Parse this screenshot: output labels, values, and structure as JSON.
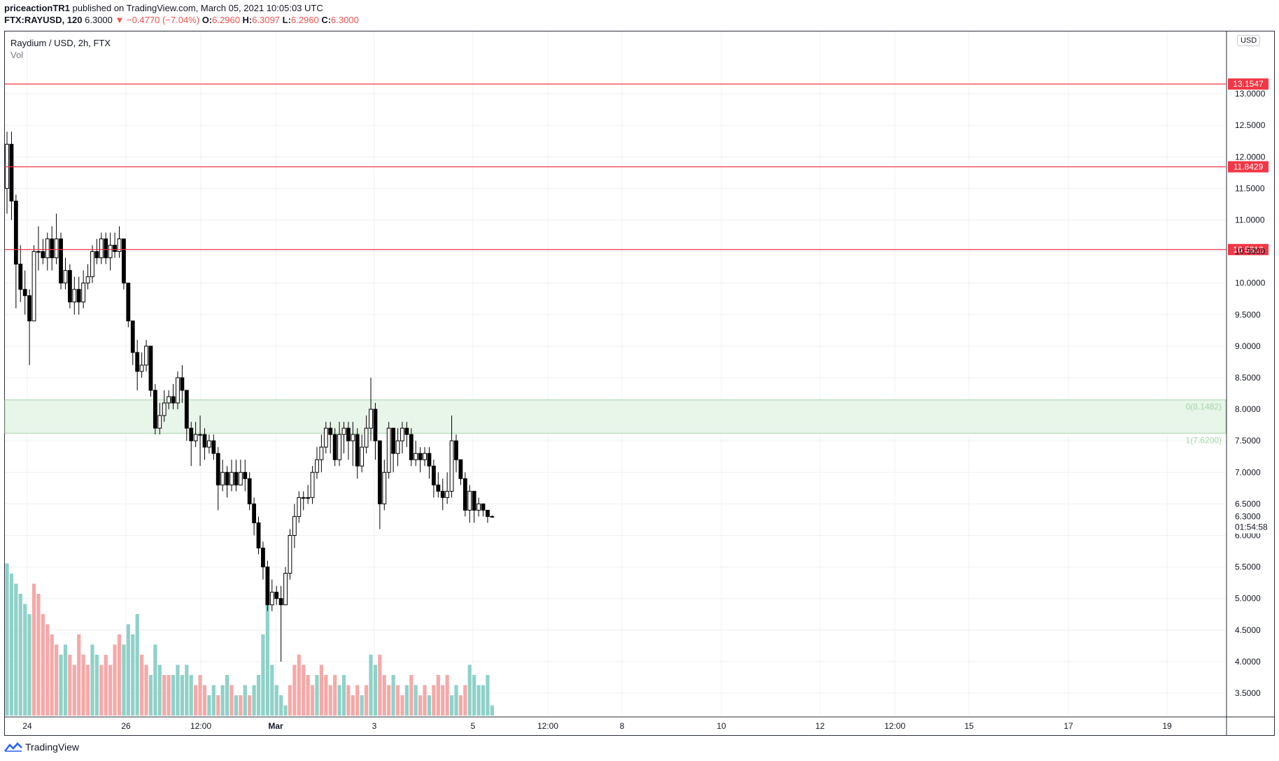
{
  "header": {
    "publisher": "priceactionTR1",
    "published_text": "published on TradingView.com, March 05, 2021 10:05:03 UTC",
    "symbol": "FTX:RAYUSD, 120",
    "last": "6.3000",
    "change": "▼ −0.4770 (−7.04%)",
    "o_label": "O:",
    "o_value": "6.2960",
    "h_label": "H:",
    "h_value": "6.3097",
    "l_label": "L:",
    "l_value": "6.2960",
    "c_label": "C:",
    "c_value": "6.3000"
  },
  "legend": {
    "title": "Raydium / USD, 2h, FTX",
    "vol": "Vol"
  },
  "price_scale": {
    "currency": "USD"
  },
  "footer": {
    "brand": "TradingView"
  },
  "colors": {
    "up_volume": "#8fd1c8",
    "down_volume": "#f4a9a8",
    "level_line": "#f23645",
    "zone_fill": "#e8f5e9",
    "zone_border": "#a5d6a7",
    "grid": "#edf0f4",
    "candle": "#000000"
  },
  "chart_data": {
    "type": "candlestick",
    "ylim": [
      3.1,
      13.8
    ],
    "y_ticks": [
      "13.0000",
      "12.5000",
      "12.0000",
      "11.5000",
      "11.0000",
      "10.5000",
      "10.0000",
      "9.5000",
      "9.0000",
      "8.5000",
      "8.0000",
      "7.5000",
      "7.0000",
      "6.5000",
      "6.0000",
      "5.5000",
      "5.0000",
      "4.5000",
      "4.0000",
      "3.5000"
    ],
    "x_ticks": [
      {
        "label": "24",
        "bold": false
      },
      {
        "label": "26",
        "bold": false
      },
      {
        "label": "12:00",
        "bold": false
      },
      {
        "label": "Mar",
        "bold": true
      },
      {
        "label": "3",
        "bold": false
      },
      {
        "label": "5",
        "bold": false
      },
      {
        "label": "12:00",
        "bold": false
      },
      {
        "label": "8",
        "bold": false
      },
      {
        "label": "10",
        "bold": false
      },
      {
        "label": "12",
        "bold": false
      },
      {
        "label": "12:00",
        "bold": false
      },
      {
        "label": "15",
        "bold": false
      },
      {
        "label": "17",
        "bold": false
      },
      {
        "label": "19",
        "bold": false
      }
    ],
    "horizontal_levels": [
      {
        "value": 13.1547,
        "label": "13.1547"
      },
      {
        "value": 11.8429,
        "label": "11.8429"
      },
      {
        "value": 10.5312,
        "label": "10.5312"
      }
    ],
    "zone": {
      "top": 8.1482,
      "bottom": 7.62,
      "top_label": "0(8.1482)",
      "bottom_label": "1(7.6200)"
    },
    "last_price": {
      "value": 6.3,
      "label": "6.3000",
      "countdown": "01:54:58"
    },
    "candles": [
      [
        11.5,
        12.2,
        12.4,
        11.1
      ],
      [
        12.2,
        11.3,
        12.4,
        11.0
      ],
      [
        11.3,
        10.3,
        11.4,
        9.6
      ],
      [
        10.3,
        9.9,
        10.6,
        9.7
      ],
      [
        9.9,
        9.8,
        10.2,
        9.5
      ],
      [
        9.8,
        9.4,
        9.9,
        8.7
      ],
      [
        9.4,
        10.5,
        10.6,
        9.4
      ],
      [
        10.5,
        10.5,
        10.9,
        10.2
      ],
      [
        10.5,
        10.4,
        10.7,
        10.3
      ],
      [
        10.4,
        10.7,
        10.8,
        10.2
      ],
      [
        10.7,
        10.4,
        10.9,
        10.2
      ],
      [
        10.4,
        10.7,
        11.1,
        10.3
      ],
      [
        10.7,
        10.0,
        10.8,
        9.9
      ],
      [
        10.0,
        10.2,
        10.4,
        9.9
      ],
      [
        10.2,
        9.7,
        10.3,
        9.6
      ],
      [
        9.7,
        9.9,
        10.1,
        9.5
      ],
      [
        9.9,
        9.7,
        10.1,
        9.5
      ],
      [
        9.7,
        10.0,
        10.2,
        9.6
      ],
      [
        10.0,
        10.1,
        10.3,
        9.9
      ],
      [
        10.1,
        10.5,
        10.6,
        10.0
      ],
      [
        10.5,
        10.4,
        10.7,
        10.3
      ],
      [
        10.4,
        10.7,
        10.8,
        10.3
      ],
      [
        10.7,
        10.4,
        10.8,
        10.3
      ],
      [
        10.4,
        10.6,
        10.8,
        10.2
      ],
      [
        10.6,
        10.5,
        10.8,
        10.4
      ],
      [
        10.5,
        10.7,
        10.9,
        10.4
      ],
      [
        10.7,
        10.0,
        10.7,
        9.9
      ],
      [
        10.0,
        9.4,
        10.0,
        9.3
      ],
      [
        9.4,
        8.9,
        9.4,
        8.7
      ],
      [
        8.9,
        8.6,
        9.1,
        8.3
      ],
      [
        8.6,
        8.7,
        8.9,
        8.5
      ],
      [
        8.7,
        9.0,
        9.1,
        8.6
      ],
      [
        9.0,
        8.3,
        9.0,
        8.2
      ],
      [
        8.3,
        7.7,
        8.4,
        7.6
      ],
      [
        7.7,
        7.9,
        8.1,
        7.6
      ],
      [
        7.9,
        8.1,
        8.3,
        7.8
      ],
      [
        8.1,
        8.2,
        8.3,
        8.0
      ],
      [
        8.2,
        8.1,
        8.4,
        8.0
      ],
      [
        8.1,
        8.5,
        8.6,
        8.0
      ],
      [
        8.5,
        8.3,
        8.7,
        8.1
      ],
      [
        8.3,
        7.7,
        8.3,
        7.5
      ],
      [
        7.7,
        7.5,
        7.8,
        7.1
      ],
      [
        7.5,
        7.6,
        7.8,
        7.4
      ],
      [
        7.6,
        7.6,
        7.9,
        7.1
      ],
      [
        7.6,
        7.4,
        7.7,
        7.2
      ],
      [
        7.4,
        7.5,
        7.6,
        7.3
      ],
      [
        7.5,
        7.3,
        7.6,
        7.2
      ],
      [
        7.3,
        6.8,
        7.4,
        6.4
      ],
      [
        6.8,
        7.0,
        7.2,
        6.7
      ],
      [
        7.0,
        6.8,
        7.1,
        6.6
      ],
      [
        6.8,
        7.0,
        7.2,
        6.7
      ],
      [
        7.0,
        6.8,
        7.2,
        6.7
      ],
      [
        6.8,
        7.0,
        7.2,
        6.8
      ],
      [
        7.0,
        6.9,
        7.2,
        6.7
      ],
      [
        6.9,
        6.5,
        7.0,
        6.4
      ],
      [
        6.5,
        6.2,
        6.6,
        6.0
      ],
      [
        6.2,
        5.8,
        6.3,
        5.7
      ],
      [
        5.8,
        5.5,
        5.9,
        5.3
      ],
      [
        5.5,
        4.9,
        5.6,
        4.8
      ],
      [
        4.9,
        5.1,
        5.3,
        4.8
      ],
      [
        5.1,
        5.0,
        5.2,
        4.9
      ],
      [
        5.0,
        4.9,
        5.2,
        4.0
      ],
      [
        4.9,
        5.4,
        5.5,
        4.9
      ],
      [
        5.4,
        6.0,
        6.1,
        5.3
      ],
      [
        6.0,
        6.3,
        6.5,
        5.8
      ],
      [
        6.3,
        6.6,
        6.7,
        6.2
      ],
      [
        6.6,
        6.6,
        6.7,
        6.4
      ],
      [
        6.6,
        6.6,
        6.8,
        6.5
      ],
      [
        6.6,
        7.0,
        7.1,
        6.5
      ],
      [
        7.0,
        7.2,
        7.4,
        6.9
      ],
      [
        7.2,
        7.4,
        7.6,
        7.0
      ],
      [
        7.4,
        7.7,
        7.8,
        7.3
      ],
      [
        7.7,
        7.6,
        7.8,
        7.3
      ],
      [
        7.6,
        7.2,
        7.7,
        7.1
      ],
      [
        7.2,
        7.6,
        7.8,
        7.1
      ],
      [
        7.6,
        7.7,
        7.8,
        7.3
      ],
      [
        7.7,
        7.5,
        7.8,
        7.2
      ],
      [
        7.5,
        7.6,
        7.8,
        7.1
      ],
      [
        7.6,
        7.1,
        7.7,
        6.9
      ],
      [
        7.1,
        7.4,
        7.6,
        7.0
      ],
      [
        7.4,
        7.7,
        7.9,
        7.3
      ],
      [
        7.7,
        8.0,
        8.5,
        7.5
      ],
      [
        8.0,
        7.5,
        8.1,
        7.2
      ],
      [
        7.5,
        6.5,
        7.5,
        6.1
      ],
      [
        6.5,
        7.0,
        7.2,
        6.4
      ],
      [
        7.0,
        7.7,
        7.8,
        6.9
      ],
      [
        7.7,
        7.3,
        7.7,
        7.0
      ],
      [
        7.3,
        7.5,
        7.7,
        7.1
      ],
      [
        7.5,
        7.7,
        7.8,
        7.3
      ],
      [
        7.7,
        7.6,
        7.8,
        7.4
      ],
      [
        7.6,
        7.2,
        7.7,
        7.1
      ],
      [
        7.2,
        7.3,
        7.5,
        7.1
      ],
      [
        7.3,
        7.2,
        7.4,
        7.0
      ],
      [
        7.2,
        7.3,
        7.4,
        7.1
      ],
      [
        7.3,
        7.1,
        7.4,
        6.9
      ],
      [
        7.1,
        6.8,
        7.2,
        6.6
      ],
      [
        6.8,
        6.7,
        7.0,
        6.6
      ],
      [
        6.7,
        6.6,
        6.9,
        6.4
      ],
      [
        6.6,
        6.7,
        7.0,
        6.5
      ],
      [
        6.7,
        7.5,
        7.9,
        6.6
      ],
      [
        7.5,
        7.2,
        7.6,
        7.0
      ],
      [
        7.2,
        6.9,
        7.2,
        6.8
      ],
      [
        6.9,
        6.4,
        7.0,
        6.3
      ],
      [
        6.4,
        6.7,
        6.8,
        6.2
      ],
      [
        6.7,
        6.4,
        6.7,
        6.2
      ],
      [
        6.4,
        6.5,
        6.6,
        6.3
      ],
      [
        6.5,
        6.4,
        6.5,
        6.3
      ],
      [
        6.4,
        6.3,
        6.4,
        6.2
      ],
      [
        6.3,
        6.3,
        6.32,
        6.29
      ]
    ],
    "volume": [
      [
        15,
        1
      ],
      [
        14,
        1
      ],
      [
        13,
        1
      ],
      [
        12,
        1
      ],
      [
        11,
        1
      ],
      [
        10,
        1
      ],
      [
        13,
        0
      ],
      [
        12,
        0
      ],
      [
        10,
        0
      ],
      [
        9,
        0
      ],
      [
        8,
        0
      ],
      [
        7,
        0
      ],
      [
        6,
        1
      ],
      [
        7,
        1
      ],
      [
        6,
        0
      ],
      [
        5,
        0
      ],
      [
        8,
        0
      ],
      [
        6,
        0
      ],
      [
        5,
        0
      ],
      [
        7,
        1
      ],
      [
        6,
        1
      ],
      [
        5,
        0
      ],
      [
        6,
        0
      ],
      [
        5,
        0
      ],
      [
        7,
        0
      ],
      [
        8,
        0
      ],
      [
        7,
        1
      ],
      [
        9,
        1
      ],
      [
        8,
        1
      ],
      [
        10,
        1
      ],
      [
        6,
        0
      ],
      [
        5,
        0
      ],
      [
        4,
        1
      ],
      [
        7,
        1
      ],
      [
        5,
        1
      ],
      [
        4,
        0
      ],
      [
        4,
        0
      ],
      [
        4,
        1
      ],
      [
        5,
        1
      ],
      [
        4,
        1
      ],
      [
        5,
        1
      ],
      [
        4,
        1
      ],
      [
        3,
        0
      ],
      [
        4,
        0
      ],
      [
        3,
        0
      ],
      [
        2,
        1
      ],
      [
        3,
        1
      ],
      [
        2,
        0
      ],
      [
        3,
        1
      ],
      [
        4,
        1
      ],
      [
        3,
        0
      ],
      [
        2,
        1
      ],
      [
        2,
        0
      ],
      [
        3,
        1
      ],
      [
        2,
        0
      ],
      [
        3,
        1
      ],
      [
        4,
        1
      ],
      [
        8,
        1
      ],
      [
        11,
        1
      ],
      [
        5,
        1
      ],
      [
        3,
        1
      ],
      [
        2,
        1
      ],
      [
        1,
        1
      ],
      [
        3,
        0
      ],
      [
        5,
        0
      ],
      [
        6,
        0
      ],
      [
        5,
        0
      ],
      [
        4,
        0
      ],
      [
        3,
        0
      ],
      [
        4,
        1
      ],
      [
        5,
        0
      ],
      [
        4,
        0
      ],
      [
        3,
        0
      ],
      [
        4,
        0
      ],
      [
        3,
        1
      ],
      [
        4,
        1
      ],
      [
        3,
        0
      ],
      [
        2,
        0
      ],
      [
        3,
        0
      ],
      [
        2,
        1
      ],
      [
        3,
        0
      ],
      [
        6,
        1
      ],
      [
        5,
        1
      ],
      [
        6,
        0
      ],
      [
        4,
        0
      ],
      [
        3,
        0
      ],
      [
        4,
        1
      ],
      [
        3,
        0
      ],
      [
        2,
        0
      ],
      [
        3,
        1
      ],
      [
        4,
        0
      ],
      [
        3,
        1
      ],
      [
        2,
        0
      ],
      [
        3,
        0
      ],
      [
        2,
        1
      ],
      [
        3,
        0
      ],
      [
        4,
        0
      ],
      [
        3,
        0
      ],
      [
        4,
        0
      ],
      [
        2,
        1
      ],
      [
        3,
        1
      ],
      [
        2,
        0
      ],
      [
        3,
        0
      ],
      [
        5,
        1
      ],
      [
        4,
        1
      ],
      [
        3,
        1
      ],
      [
        3,
        1
      ],
      [
        4,
        1
      ],
      [
        1,
        1
      ]
    ]
  }
}
